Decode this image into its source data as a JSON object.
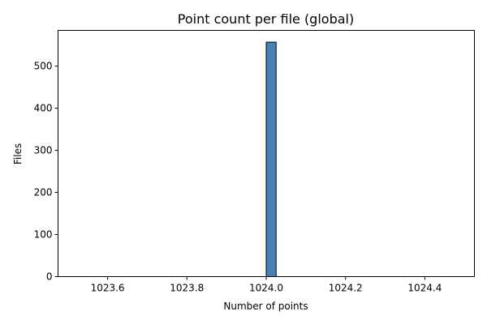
{
  "chart_data": {
    "type": "bar",
    "title": "Point count per file (global)",
    "xlabel": "Number of points",
    "ylabel": "Files",
    "xlim": [
      1023.475,
      1024.525
    ],
    "ylim": [
      0,
      585
    ],
    "x_ticks": [
      1023.6,
      1023.8,
      1024.0,
      1024.2,
      1024.4
    ],
    "x_tick_labels": [
      "1023.6",
      "1023.8",
      "1024.0",
      "1024.2",
      "1024.4"
    ],
    "y_ticks": [
      0,
      100,
      200,
      300,
      400,
      500
    ],
    "y_tick_labels": [
      "0",
      "100",
      "200",
      "300",
      "400",
      "500"
    ],
    "bins": {
      "start": 1023.5,
      "end": 1024.5,
      "count": 40
    },
    "bars": [
      {
        "x0": 1024.0,
        "x1": 1024.025,
        "value": 557
      }
    ],
    "bar_color": "#4682b4",
    "edge_color": "#000000",
    "grid": false
  }
}
